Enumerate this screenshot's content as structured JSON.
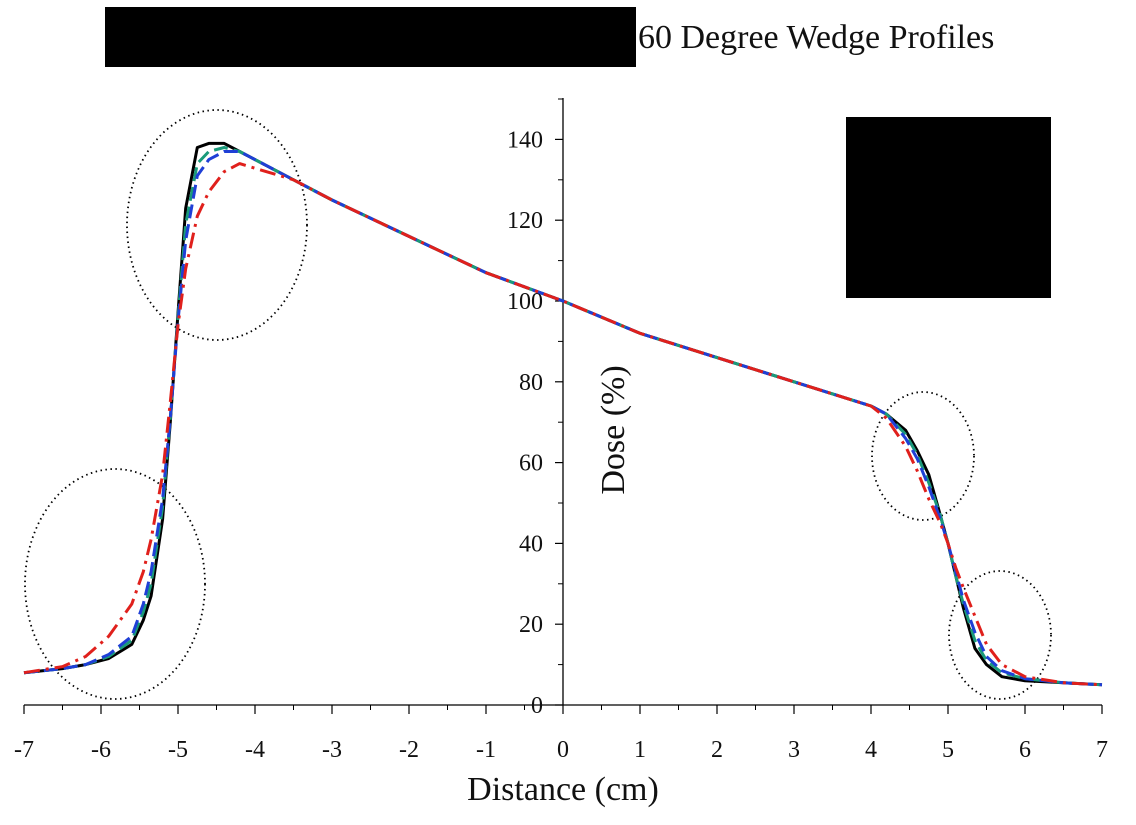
{
  "chart_data": {
    "type": "line",
    "title": "60 Degree Wedge Profiles",
    "xlabel": "Distance (cm)",
    "ylabel": "Dose (%)",
    "xlim": [
      -7,
      7
    ],
    "ylim": [
      0,
      150
    ],
    "x_ticks": [
      -7,
      -6,
      -5,
      -4,
      -3,
      -2,
      -1,
      0,
      1,
      2,
      3,
      4,
      5,
      6,
      7
    ],
    "x_tick_labels": [
      "-7",
      "-6",
      "-5",
      "-4",
      "-3",
      "-2",
      "-1",
      "0",
      "1",
      "2",
      "3",
      "4",
      "5",
      "6",
      "7"
    ],
    "y_ticks": [
      0,
      20,
      40,
      60,
      80,
      100,
      120,
      140
    ],
    "y_tick_labels": [
      "0",
      "20",
      "40",
      "60",
      "80",
      "100",
      "120",
      "140"
    ],
    "grid": false,
    "legend": "redacted (black box, top-right)",
    "redactions": "two black boxes: left of title, and legend area top-right",
    "series": [
      {
        "color": "#000000",
        "style": "solid",
        "x": [
          -7,
          -6.5,
          -6.2,
          -5.9,
          -5.6,
          -5.45,
          -5.35,
          -5.2,
          -5.1,
          -5.0,
          -4.9,
          -4.75,
          -4.6,
          -4.4,
          -4.2,
          -3.5,
          -3.0,
          -2.0,
          -1.0,
          0,
          1,
          2,
          3,
          4.0,
          4.2,
          4.45,
          4.6,
          4.75,
          4.9,
          5.0,
          5.1,
          5.2,
          5.35,
          5.5,
          5.7,
          6.0,
          6.5,
          7
        ],
        "y": [
          8,
          9,
          10,
          11.5,
          15,
          21,
          27,
          46,
          70,
          97,
          123,
          138,
          139,
          139,
          137,
          130,
          125,
          116,
          107,
          100,
          92,
          86,
          80,
          74,
          72,
          68,
          63,
          57,
          47,
          40,
          32,
          24,
          14,
          10,
          7,
          6,
          5.5,
          5
        ]
      },
      {
        "color": "#1a9a7a",
        "style": "dashed",
        "x": [
          -7,
          -6.5,
          -6.2,
          -5.9,
          -5.6,
          -5.45,
          -5.35,
          -5.2,
          -5.1,
          -5.0,
          -4.9,
          -4.75,
          -4.6,
          -4.4,
          -4.2,
          -3.5,
          -3.0,
          -2.0,
          -1.0,
          0,
          1,
          2,
          3,
          4.0,
          4.2,
          4.45,
          4.6,
          4.75,
          4.9,
          5.0,
          5.1,
          5.2,
          5.35,
          5.5,
          5.7,
          6.0,
          6.5,
          7
        ],
        "y": [
          8,
          9,
          10,
          12,
          16,
          23,
          30,
          49,
          71,
          96,
          119,
          134,
          137,
          138,
          137,
          130,
          125,
          116,
          107,
          100,
          92,
          86,
          80,
          74,
          72,
          67,
          62,
          55,
          47,
          40,
          32,
          25,
          16,
          11,
          8,
          6.5,
          5.5,
          5
        ]
      },
      {
        "color": "#1f3fd6",
        "style": "dashed",
        "x": [
          -7,
          -6.5,
          -6.2,
          -5.9,
          -5.6,
          -5.45,
          -5.35,
          -5.2,
          -5.1,
          -5.0,
          -4.9,
          -4.75,
          -4.6,
          -4.4,
          -4.2,
          -3.5,
          -3.0,
          -2.0,
          -1.0,
          0,
          1,
          2,
          3,
          4.0,
          4.2,
          4.45,
          4.6,
          4.75,
          4.9,
          5.0,
          5.1,
          5.2,
          5.35,
          5.5,
          5.7,
          6.0,
          6.5,
          7
        ],
        "y": [
          8,
          9,
          10,
          12.5,
          17,
          25,
          33,
          51,
          71,
          95,
          115,
          131,
          135,
          137,
          137,
          130,
          125,
          116,
          107,
          100,
          92,
          86,
          80,
          74,
          72,
          66,
          61,
          54,
          46,
          40,
          33,
          26,
          18,
          12,
          8.5,
          6.5,
          5.5,
          5
        ]
      },
      {
        "color": "#e0201c",
        "style": "dashdot",
        "x": [
          -7,
          -6.5,
          -6.2,
          -5.9,
          -5.6,
          -5.45,
          -5.35,
          -5.2,
          -5.1,
          -5.0,
          -4.9,
          -4.75,
          -4.6,
          -4.4,
          -4.2,
          -3.5,
          -3.0,
          -2.0,
          -1.0,
          0,
          1,
          2,
          3,
          4.0,
          4.2,
          4.45,
          4.6,
          4.75,
          4.9,
          5.0,
          5.1,
          5.2,
          5.35,
          5.5,
          5.7,
          6.0,
          6.5,
          7
        ],
        "y": [
          8,
          9.5,
          12,
          17,
          25,
          33,
          41,
          57,
          75,
          94,
          108,
          121,
          127,
          132,
          134,
          130,
          125,
          116,
          107,
          100,
          92,
          86,
          80,
          74,
          71,
          64,
          58,
          51,
          45,
          40,
          34,
          29,
          22,
          15,
          10,
          7,
          5.5,
          5
        ]
      }
    ]
  }
}
